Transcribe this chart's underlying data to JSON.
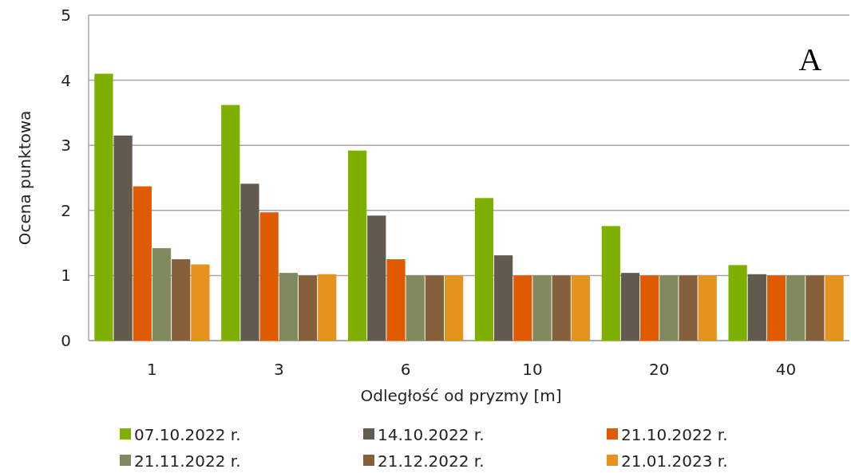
{
  "chart_data": {
    "type": "bar",
    "xlabel": "Odległość od pryzmy [m]",
    "ylabel": "Ocena punktowa",
    "categories": [
      "1",
      "3",
      "6",
      "10",
      "20",
      "40"
    ],
    "series": [
      {
        "name": "07.10.2022 r.",
        "color": "#7fb000",
        "values": [
          4.1,
          3.62,
          2.92,
          2.19,
          1.76,
          1.16
        ]
      },
      {
        "name": "14.10.2022 r.",
        "color": "#635a4f",
        "values": [
          3.15,
          2.41,
          1.92,
          1.31,
          1.04,
          1.02
        ]
      },
      {
        "name": "21.10.2022 r.",
        "color": "#e05a00",
        "values": [
          2.37,
          1.97,
          1.25,
          1,
          1,
          1
        ]
      },
      {
        "name": "21.11.2022 r.",
        "color": "#7f8a5e",
        "values": [
          1.42,
          1.04,
          1,
          1,
          1,
          1
        ]
      },
      {
        "name": "21.12.2022 r.",
        "color": "#86603a",
        "values": [
          1.25,
          1,
          1,
          1,
          1,
          1
        ]
      },
      {
        "name": "21.01.2023 r.",
        "color": "#e6921e",
        "values": [
          1.17,
          1.02,
          1,
          1,
          1,
          1
        ]
      }
    ],
    "ylim": [
      0,
      5
    ],
    "yticks": [
      0,
      1,
      2,
      3,
      4,
      5
    ],
    "grid": "y",
    "legend": "bottom",
    "annotations": [
      "A"
    ]
  }
}
